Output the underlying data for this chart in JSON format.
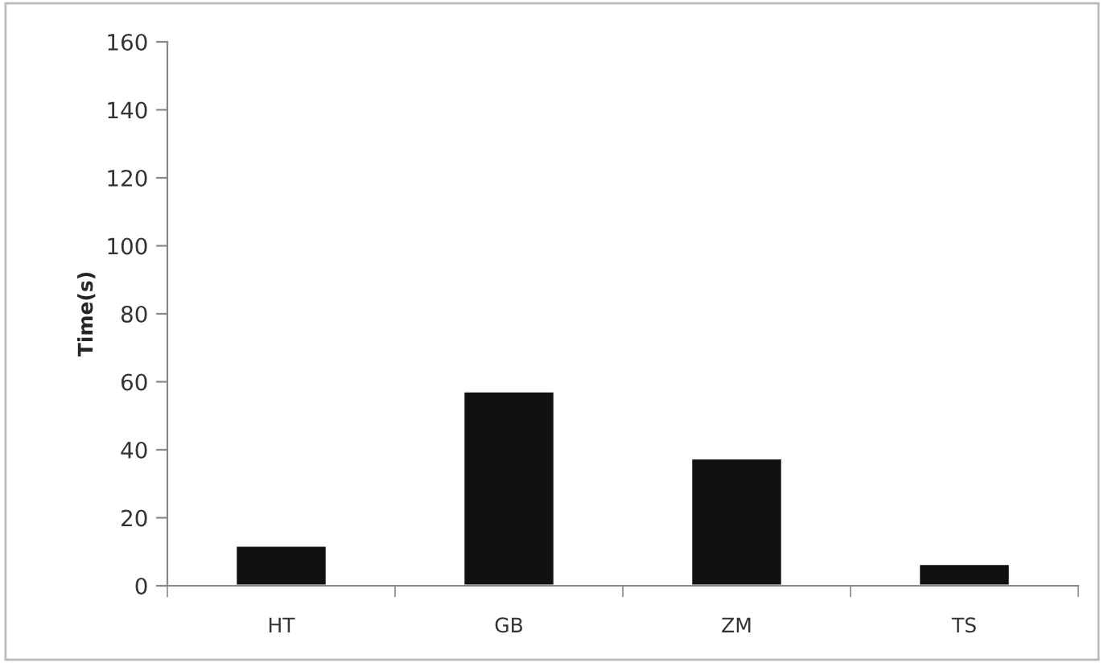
{
  "chart_data": {
    "type": "bar",
    "ylabel": "Time(s)",
    "categories": [
      "HT",
      "GB",
      "ZM",
      "TS"
    ],
    "values": [
      11.8,
      57.2,
      37.5,
      6.4
    ],
    "color": "#111111",
    "ylim": [
      0,
      160
    ],
    "yticks": [
      0,
      20,
      40,
      60,
      80,
      100,
      120,
      140,
      160
    ],
    "grid": false
  }
}
